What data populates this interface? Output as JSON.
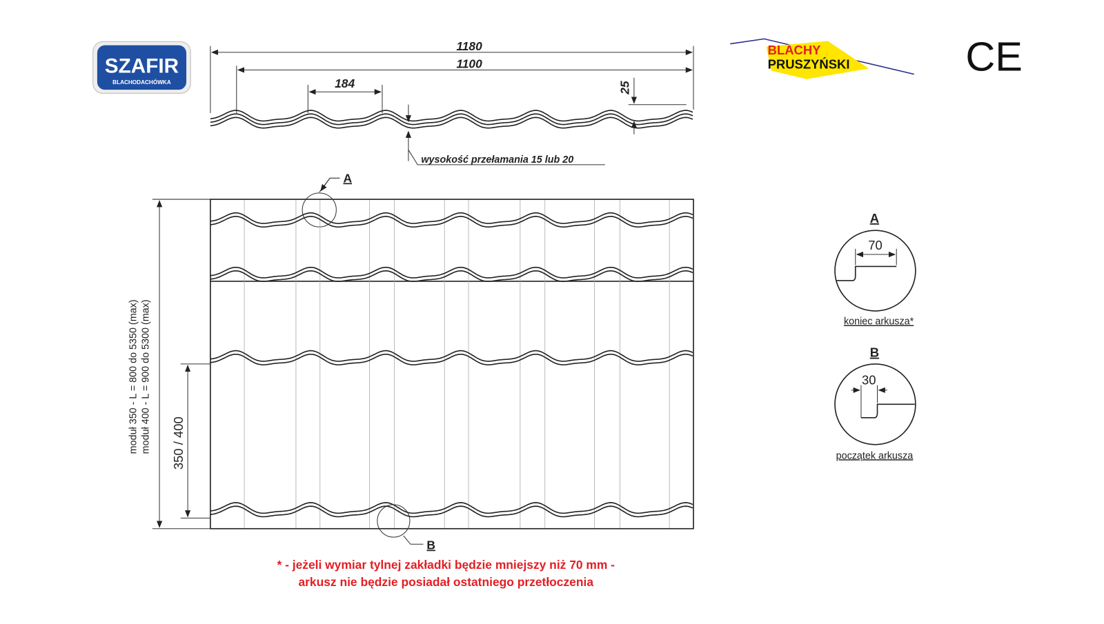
{
  "logos": {
    "szafir": {
      "name": "SZAFIR",
      "tagline": "BLACHODACHÓWKA"
    },
    "blachy": {
      "line1": "BLACHY",
      "line2": "PRUSZYŃSKI"
    },
    "ce": "CE"
  },
  "profile": {
    "width_total": "1180",
    "width_effective": "1100",
    "wave_pitch": "184",
    "height": "25",
    "note": "wysokość przełamania 15 lub 20"
  },
  "plan": {
    "marker_a": "A",
    "marker_b": "B",
    "length_350": "moduł 350 - L = 800 do 5350 (max)",
    "length_400": "moduł 400 - L = 900 do 5300 (max)",
    "module": "350 / 400"
  },
  "details": [
    {
      "label": "A",
      "dimension": "70",
      "caption": "koniec arkusza*"
    },
    {
      "label": "B",
      "dimension": "30",
      "caption": "początek arkusza"
    }
  ],
  "footnote": [
    "* - jeżeli wymiar tylnej zakładki będzie mniejszy niż 70 mm -",
    "arkusz nie będzie posiadał ostatniego przetłoczenia"
  ]
}
